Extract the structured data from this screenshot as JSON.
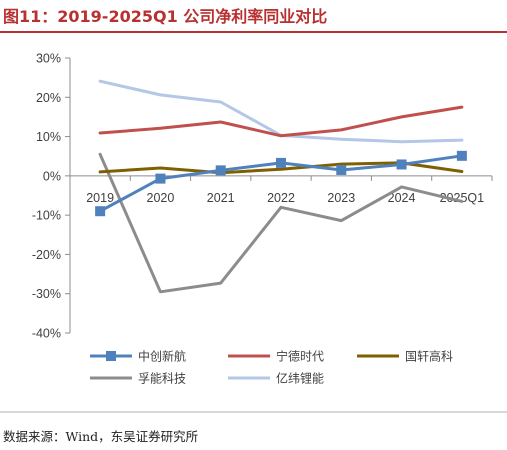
{
  "chart_data": {
    "type": "line",
    "title": "图11：2019-2025Q1 公司净利率同业对比",
    "xlabel": "",
    "ylabel": "",
    "categories": [
      "2019",
      "2020",
      "2021",
      "2022",
      "2023",
      "2024",
      "2025Q1"
    ],
    "y_ticks": [
      "30%",
      "20%",
      "10%",
      "0%",
      "-10%",
      "-20%",
      "-30%",
      "-40%"
    ],
    "ylim": [
      -40,
      30
    ],
    "y_unit": "%",
    "grid": false,
    "legend_position": "bottom",
    "series": [
      {
        "name": "中创新航",
        "values": [
          -9.0,
          -0.7,
          1.4,
          3.3,
          1.5,
          2.9,
          5.1
        ],
        "color": "#4f81bd",
        "marker": "square"
      },
      {
        "name": "宁德时代",
        "values": [
          10.9,
          12.1,
          13.7,
          10.2,
          11.7,
          15.0,
          17.5
        ],
        "color": "#c0504d",
        "marker": "none"
      },
      {
        "name": "国轩高科",
        "values": [
          1.0,
          2.0,
          0.8,
          1.7,
          3.0,
          3.3,
          1.1
        ],
        "color": "#7f6000",
        "marker": "none"
      },
      {
        "name": "孚能科技",
        "values": [
          5.5,
          -29.5,
          -27.3,
          -8.0,
          -11.4,
          -2.8,
          -6.5
        ],
        "color": "#8c8c8c",
        "marker": "none"
      },
      {
        "name": "亿纬锂能",
        "values": [
          24.1,
          20.6,
          18.8,
          10.3,
          9.3,
          8.7,
          9.1
        ],
        "color": "#b4c7e7",
        "marker": "none"
      }
    ]
  },
  "source": "数据来源：Wind，东吴证券研究所",
  "colors": {
    "title": "#b83030",
    "title_bar": "#b83030",
    "axis": "#8c8c8c"
  }
}
